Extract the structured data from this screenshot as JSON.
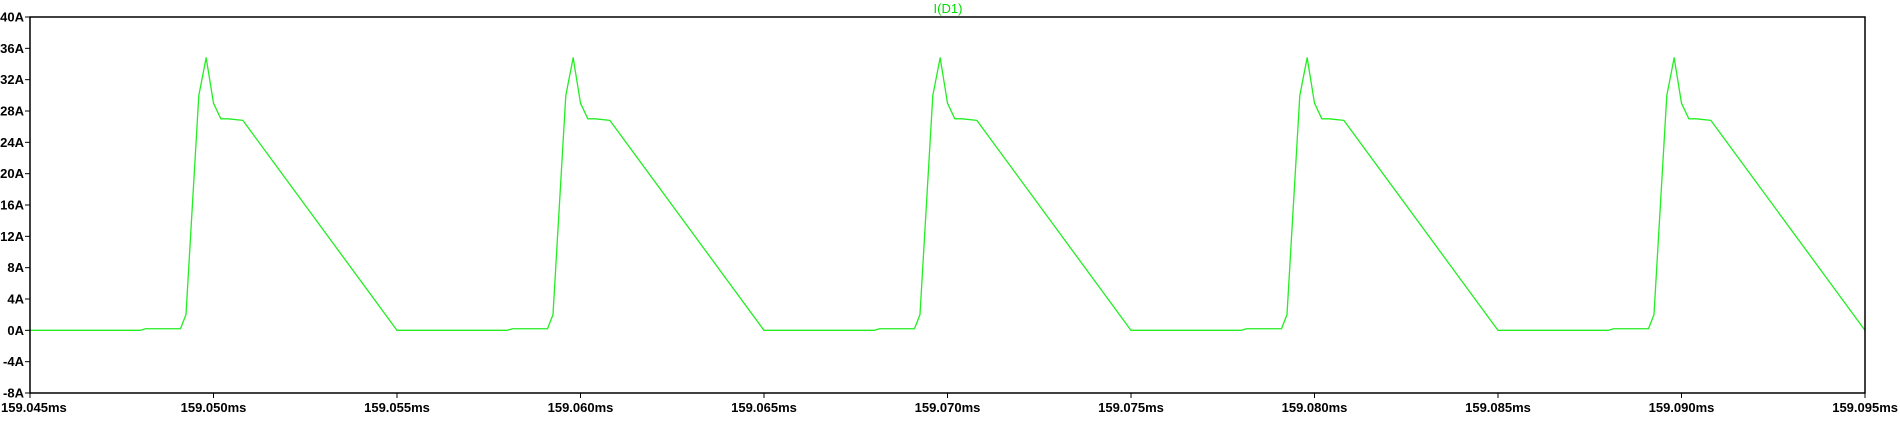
{
  "colors": {
    "background": "#ffffff",
    "frame": "#000000",
    "trace": "#22ee22",
    "title": "#00dd00"
  },
  "chart_data": {
    "type": "line",
    "title": "I(D1)",
    "xlabel": "",
    "ylabel": "",
    "grid": false,
    "xlim": [
      159.045,
      159.095
    ],
    "ylim": [
      -8,
      40
    ],
    "x_unit": "ms",
    "y_unit": "A",
    "x_ticks": [
      "159.045ms",
      "159.050ms",
      "159.055ms",
      "159.060ms",
      "159.065ms",
      "159.070ms",
      "159.075ms",
      "159.080ms",
      "159.085ms",
      "159.090ms",
      "159.095ms"
    ],
    "y_ticks": [
      "40A",
      "36A",
      "32A",
      "28A",
      "24A",
      "20A",
      "16A",
      "12A",
      "8A",
      "4A",
      "0A",
      "-4A",
      "-8A"
    ],
    "series": [
      {
        "name": "I(D1)",
        "x": [
          159.045,
          159.048,
          159.04815,
          159.0491,
          159.04925,
          159.0496,
          159.0498,
          159.05,
          159.0502,
          159.0504,
          159.0508,
          159.055,
          159.058,
          159.05815,
          159.0591,
          159.05925,
          159.0596,
          159.0598,
          159.06,
          159.0602,
          159.0604,
          159.0608,
          159.065,
          159.068,
          159.06815,
          159.0691,
          159.06925,
          159.0696,
          159.0698,
          159.07,
          159.0702,
          159.0704,
          159.0708,
          159.075,
          159.078,
          159.07815,
          159.0791,
          159.07925,
          159.0796,
          159.0798,
          159.08,
          159.0802,
          159.0804,
          159.0808,
          159.085,
          159.088,
          159.08815,
          159.0891,
          159.08925,
          159.0896,
          159.0898,
          159.09,
          159.0902,
          159.0904,
          159.0908,
          159.095
        ],
        "y": [
          0,
          0,
          0.2,
          0.2,
          2,
          30,
          34.8,
          29,
          27,
          27,
          26.8,
          0,
          0,
          0.2,
          0.2,
          2,
          30,
          34.8,
          29,
          27,
          27,
          26.8,
          0,
          0,
          0.2,
          0.2,
          2,
          30,
          34.8,
          29,
          27,
          27,
          26.8,
          0,
          0,
          0.2,
          0.2,
          2,
          30,
          34.8,
          29,
          27,
          27,
          26.8,
          0,
          0,
          0.2,
          0.2,
          2,
          30,
          34.8,
          29,
          27,
          27,
          26.8,
          0
        ]
      }
    ]
  }
}
